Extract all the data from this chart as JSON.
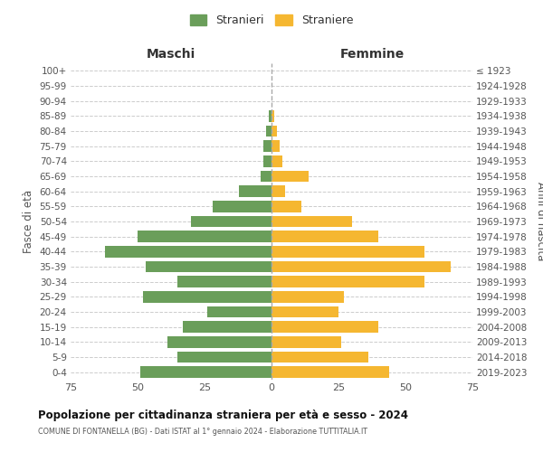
{
  "age_groups": [
    "0-4",
    "5-9",
    "10-14",
    "15-19",
    "20-24",
    "25-29",
    "30-34",
    "35-39",
    "40-44",
    "45-49",
    "50-54",
    "55-59",
    "60-64",
    "65-69",
    "70-74",
    "75-79",
    "80-84",
    "85-89",
    "90-94",
    "95-99",
    "100+"
  ],
  "birth_years": [
    "2019-2023",
    "2014-2018",
    "2009-2013",
    "2004-2008",
    "1999-2003",
    "1994-1998",
    "1989-1993",
    "1984-1988",
    "1979-1983",
    "1974-1978",
    "1969-1973",
    "1964-1968",
    "1959-1963",
    "1954-1958",
    "1949-1953",
    "1944-1948",
    "1939-1943",
    "1934-1938",
    "1929-1933",
    "1924-1928",
    "≤ 1923"
  ],
  "maschi": [
    49,
    35,
    39,
    33,
    24,
    48,
    35,
    47,
    62,
    50,
    30,
    22,
    12,
    4,
    3,
    3,
    2,
    1,
    0,
    0,
    0
  ],
  "femmine": [
    44,
    36,
    26,
    40,
    25,
    27,
    57,
    67,
    57,
    40,
    30,
    11,
    5,
    14,
    4,
    3,
    2,
    1,
    0,
    0,
    0
  ],
  "color_maschi": "#6a9e5a",
  "color_femmine": "#f5b731",
  "title": "Popolazione per cittadinanza straniera per età e sesso - 2024",
  "subtitle": "COMUNE DI FONTANELLA (BG) - Dati ISTAT al 1° gennaio 2024 - Elaborazione TUTTITALIA.IT",
  "label_maschi": "Stranieri",
  "label_femmine": "Straniere",
  "xlabel_left": "Maschi",
  "xlabel_right": "Femmine",
  "ylabel_left": "Fasce di età",
  "ylabel_right": "Anni di nascita",
  "xlim": 75,
  "background_color": "#ffffff",
  "grid_color": "#cccccc"
}
